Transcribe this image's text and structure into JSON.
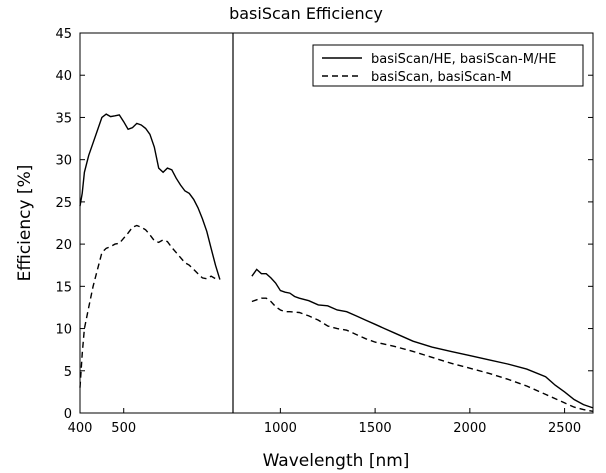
{
  "chart_data": {
    "type": "line",
    "title": "basiScan Efficiency",
    "xlabel": "Wavelength [nm]",
    "ylabel": "Efficiency [%]",
    "ylim": [
      0,
      45
    ],
    "yticks": [
      0,
      5,
      10,
      15,
      20,
      25,
      30,
      35,
      40,
      45
    ],
    "xaxis_break_note": "Two x-scale segments separated by a vertical line at the detector boundary",
    "x_segments": [
      {
        "xlim": [
          400,
          750
        ],
        "ticks": [
          400,
          500
        ]
      },
      {
        "xlim": [
          750,
          2650
        ],
        "ticks": [
          1000,
          1500,
          2000,
          2500
        ]
      }
    ],
    "legend_position": "top-right",
    "series": [
      {
        "name": "basiScan/HE, basiScan-M/HE",
        "style": "solid",
        "segments": [
          [
            [
              400,
              24.5
            ],
            [
              405,
              26
            ],
            [
              410,
              28.5
            ],
            [
              420,
              30.5
            ],
            [
              430,
              32
            ],
            [
              440,
              33.5
            ],
            [
              450,
              35
            ],
            [
              460,
              35.4
            ],
            [
              470,
              35.1
            ],
            [
              480,
              35.2
            ],
            [
              490,
              35.3
            ],
            [
              500,
              34.5
            ],
            [
              510,
              33.6
            ],
            [
              520,
              33.8
            ],
            [
              530,
              34.3
            ],
            [
              540,
              34.1
            ],
            [
              550,
              33.7
            ],
            [
              560,
              33
            ],
            [
              570,
              31.5
            ],
            [
              580,
              29
            ],
            [
              590,
              28.5
            ],
            [
              600,
              29
            ],
            [
              610,
              28.8
            ],
            [
              620,
              27.8
            ],
            [
              630,
              27
            ],
            [
              640,
              26.3
            ],
            [
              650,
              26
            ],
            [
              660,
              25.3
            ],
            [
              670,
              24.3
            ],
            [
              680,
              23
            ],
            [
              690,
              21.5
            ],
            [
              700,
              19.5
            ],
            [
              710,
              17.5
            ],
            [
              720,
              15.8
            ]
          ],
          [
            [
              850,
              16.2
            ],
            [
              875,
              17
            ],
            [
              900,
              16.5
            ],
            [
              925,
              16.5
            ],
            [
              950,
              16
            ],
            [
              975,
              15.4
            ],
            [
              1000,
              14.5
            ],
            [
              1025,
              14.3
            ],
            [
              1050,
              14.2
            ],
            [
              1075,
              13.8
            ],
            [
              1100,
              13.6
            ],
            [
              1150,
              13.3
            ],
            [
              1200,
              12.8
            ],
            [
              1250,
              12.7
            ],
            [
              1300,
              12.2
            ],
            [
              1350,
              12
            ],
            [
              1400,
              11.5
            ],
            [
              1450,
              11
            ],
            [
              1500,
              10.5
            ],
            [
              1550,
              10
            ],
            [
              1600,
              9.5
            ],
            [
              1700,
              8.5
            ],
            [
              1800,
              7.8
            ],
            [
              1900,
              7.3
            ],
            [
              2000,
              6.8
            ],
            [
              2100,
              6.3
            ],
            [
              2200,
              5.8
            ],
            [
              2300,
              5.2
            ],
            [
              2400,
              4.3
            ],
            [
              2450,
              3.3
            ],
            [
              2500,
              2.5
            ],
            [
              2550,
              1.6
            ],
            [
              2600,
              1.0
            ],
            [
              2650,
              0.6
            ]
          ]
        ]
      },
      {
        "name": "basiScan, basiScan-M",
        "style": "dashed",
        "segments": [
          [
            [
              400,
              3
            ],
            [
              405,
              7
            ],
            [
              410,
              10
            ],
            [
              420,
              12.5
            ],
            [
              430,
              15
            ],
            [
              440,
              17
            ],
            [
              450,
              19
            ],
            [
              460,
              19.5
            ],
            [
              470,
              19.7
            ],
            [
              480,
              20
            ],
            [
              490,
              20.1
            ],
            [
              500,
              20.7
            ],
            [
              510,
              21.3
            ],
            [
              520,
              22
            ],
            [
              530,
              22.2
            ],
            [
              540,
              22
            ],
            [
              550,
              21.7
            ],
            [
              560,
              21.1
            ],
            [
              570,
              20.4
            ],
            [
              580,
              20.2
            ],
            [
              590,
              20.5
            ],
            [
              600,
              20.3
            ],
            [
              610,
              19.6
            ],
            [
              620,
              19
            ],
            [
              630,
              18.4
            ],
            [
              640,
              17.8
            ],
            [
              650,
              17.5
            ],
            [
              660,
              17
            ],
            [
              670,
              16.5
            ],
            [
              680,
              16
            ],
            [
              690,
              15.9
            ],
            [
              700,
              16.2
            ],
            [
              710,
              15.9
            ]
          ],
          [
            [
              850,
              13.2
            ],
            [
              875,
              13.4
            ],
            [
              900,
              13.6
            ],
            [
              925,
              13.6
            ],
            [
              950,
              13.2
            ],
            [
              975,
              12.6
            ],
            [
              1000,
              12.2
            ],
            [
              1025,
              12
            ],
            [
              1050,
              12
            ],
            [
              1100,
              11.9
            ],
            [
              1150,
              11.5
            ],
            [
              1200,
              11
            ],
            [
              1250,
              10.3
            ],
            [
              1300,
              10
            ],
            [
              1350,
              9.8
            ],
            [
              1400,
              9.3
            ],
            [
              1450,
              8.8
            ],
            [
              1500,
              8.4
            ],
            [
              1600,
              7.9
            ],
            [
              1700,
              7.3
            ],
            [
              1800,
              6.6
            ],
            [
              1900,
              5.9
            ],
            [
              2000,
              5.3
            ],
            [
              2100,
              4.7
            ],
            [
              2200,
              4.0
            ],
            [
              2300,
              3.2
            ],
            [
              2400,
              2.2
            ],
            [
              2450,
              1.7
            ],
            [
              2500,
              1.2
            ],
            [
              2550,
              0.7
            ],
            [
              2600,
              0.4
            ],
            [
              2650,
              0.2
            ]
          ]
        ]
      }
    ]
  }
}
